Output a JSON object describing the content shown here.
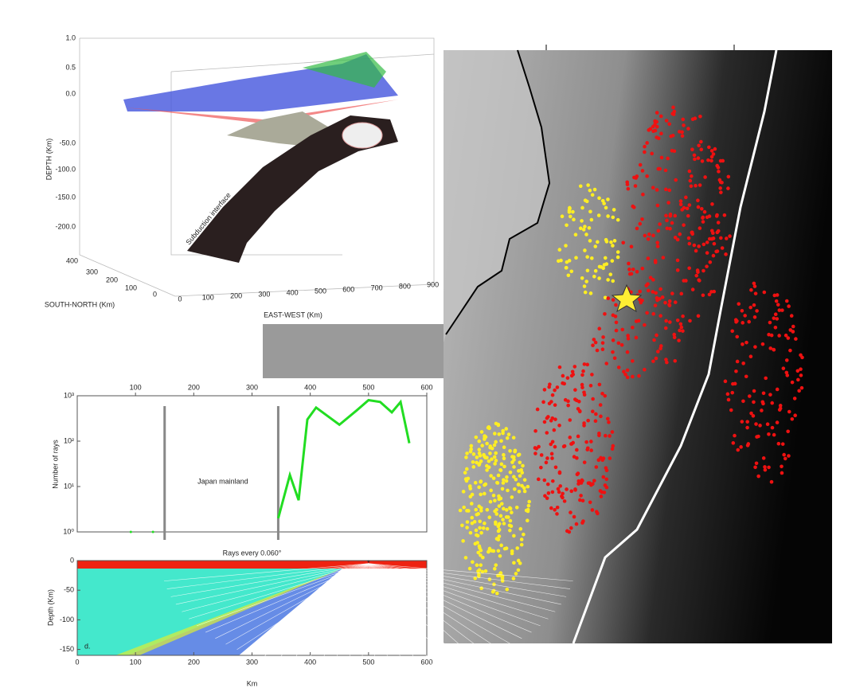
{
  "panel_3d": {
    "depth_label": "DEPTH (Km)",
    "depth_ticks": [
      "1.0",
      "0.5",
      "0.0",
      "-50.0",
      "-100.0",
      "-150.0",
      "-200.0"
    ],
    "sn_label": "SOUTH-NORTH (Km)",
    "sn_ticks": [
      "400",
      "300",
      "200",
      "100",
      "0"
    ],
    "ew_label": "EAST-WEST (Km)",
    "ew_ticks": [
      "0",
      "100",
      "200",
      "300",
      "400",
      "500",
      "600",
      "700",
      "800",
      "900"
    ],
    "surface_label": "Subduction interface"
  },
  "chart_data": [
    {
      "type": "line",
      "y_label": "Number of rays",
      "annotation": "Japan mainland",
      "mainland_bounds": [
        150,
        345
      ],
      "xlim": [
        0,
        600
      ],
      "xticks": [
        100,
        200,
        300,
        400,
        500,
        600
      ],
      "log_y": true,
      "ylim": [
        1,
        1000
      ],
      "yticks": [
        {
          "value": 1000,
          "label": "10³"
        },
        {
          "value": 100,
          "label": "10²"
        },
        {
          "value": 10,
          "label": "10¹"
        },
        {
          "value": 1,
          "label": "10⁰"
        }
      ],
      "x": [
        92,
        111,
        130,
        240,
        345,
        365,
        380,
        395,
        410,
        450,
        480,
        500,
        520,
        540,
        555,
        570
      ],
      "series": [
        {
          "color": "#22dd22",
          "values": [
            1,
            null,
            1,
            null,
            2,
            18,
            5,
            300,
            550,
            230,
            480,
            800,
            730,
            430,
            730,
            90
          ]
        }
      ]
    },
    {
      "type": "ray",
      "title": "Rays every 0.060°",
      "y_label": "Depth (Km)",
      "x_label": "Km",
      "panel_label": "d.",
      "xlim": [
        0,
        600
      ],
      "xticks": [
        0,
        100,
        200,
        300,
        400,
        500,
        600
      ],
      "ylim": [
        -160,
        0
      ],
      "yticks": [
        0,
        -50,
        -100,
        -150
      ],
      "source": {
        "x": 500,
        "y": -5
      }
    }
  ]
}
